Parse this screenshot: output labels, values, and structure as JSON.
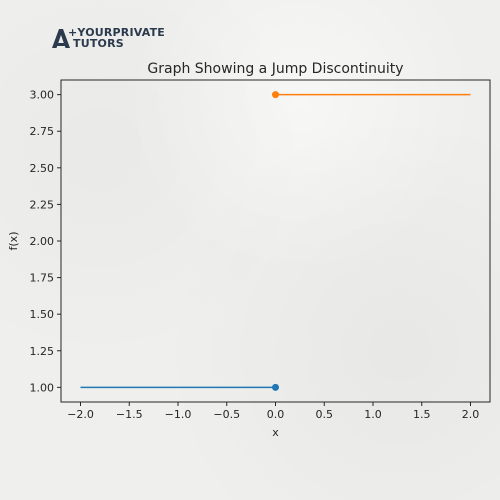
{
  "logo": {
    "line1": "+YOURPRIVATE",
    "line2": "TUTORS",
    "color": "#2b3a4c"
  },
  "chart_data": {
    "type": "line",
    "title": "Graph Showing a Jump Discontinuity",
    "xlabel": "x",
    "ylabel": "f(x)",
    "xlim": [
      -2.2,
      2.2
    ],
    "ylim": [
      0.9,
      3.1
    ],
    "xticks": [
      -2.0,
      -1.5,
      -1.0,
      -0.5,
      0.0,
      0.5,
      1.0,
      1.5,
      2.0
    ],
    "xtick_labels": [
      "−2.0",
      "−1.5",
      "−1.0",
      "−0.5",
      "0.0",
      "0.5",
      "1.0",
      "1.5",
      "2.0"
    ],
    "yticks": [
      1.0,
      1.25,
      1.5,
      1.75,
      2.0,
      2.25,
      2.5,
      2.75,
      3.0
    ],
    "ytick_labels": [
      "1.00",
      "1.25",
      "1.50",
      "1.75",
      "2.00",
      "2.25",
      "2.50",
      "2.75",
      "3.00"
    ],
    "grid": false,
    "series": [
      {
        "x": [
          -2.0,
          0.0
        ],
        "y": [
          1.0,
          1.0
        ],
        "color": "#1f77b4",
        "endpoint": {
          "x": 0.0,
          "y": 1.0
        }
      },
      {
        "x": [
          0.0,
          2.0
        ],
        "y": [
          3.0,
          3.0
        ],
        "color": "#ff7f0e",
        "endpoint": {
          "x": 0.0,
          "y": 3.0
        }
      }
    ]
  }
}
